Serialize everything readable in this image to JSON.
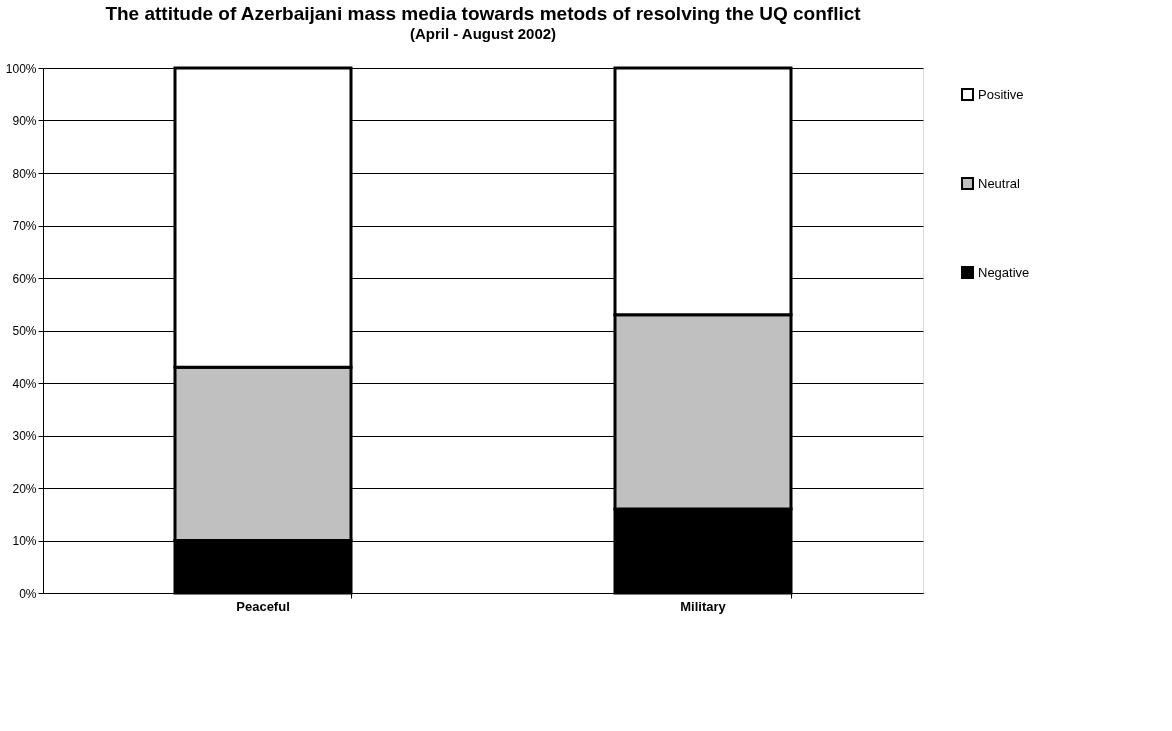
{
  "chart_data": {
    "type": "bar",
    "title": "The attitude of Azerbaijani mass media towards metods of  resolving the UQ conflict",
    "subtitle": "(April - August 2002)",
    "categories": [
      "Peaceful",
      "Military"
    ],
    "stacked": true,
    "series": [
      {
        "name": "Negative",
        "color": "#000000",
        "values": [
          10,
          16
        ]
      },
      {
        "name": "Neutral",
        "color": "#c0c0c0",
        "values": [
          33,
          37
        ]
      },
      {
        "name": "Positive",
        "color": "#ffffff",
        "values": [
          57,
          47
        ]
      }
    ],
    "ylim": [
      0,
      100
    ],
    "yticks": [
      {
        "value": 0,
        "label": "0%"
      },
      {
        "value": 10,
        "label": "10%"
      },
      {
        "value": 20,
        "label": "20%"
      },
      {
        "value": 30,
        "label": "30%"
      },
      {
        "value": 40,
        "label": "40%"
      },
      {
        "value": 50,
        "label": "50%"
      },
      {
        "value": 60,
        "label": "60%"
      },
      {
        "value": 70,
        "label": "70%"
      },
      {
        "value": 80,
        "label": "80%"
      },
      {
        "value": 90,
        "label": "90%"
      },
      {
        "value": 100,
        "label": "100%"
      }
    ],
    "grid": "y",
    "legend": "right"
  }
}
